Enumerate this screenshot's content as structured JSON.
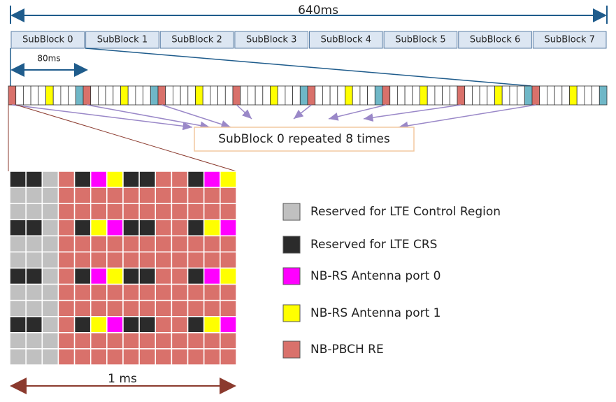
{
  "timeline": {
    "total": "640ms",
    "period": "80ms"
  },
  "subblocks": [
    "SubBlock 0",
    "SubBlock 1",
    "SubBlock 2",
    "SubBlock 3",
    "SubBlock 4",
    "SubBlock 5",
    "SubBlock 6",
    "SubBlock 7"
  ],
  "callout": "SubBlock 0 repeated 8 times",
  "legend": [
    "Reserved for LTE Control Region",
    "Reserved for LTE CRS",
    "NB-RS Antenna port 0",
    "NB-RS Antenna port 1",
    "NB-PBCH RE"
  ],
  "duration": "1 ms"
}
